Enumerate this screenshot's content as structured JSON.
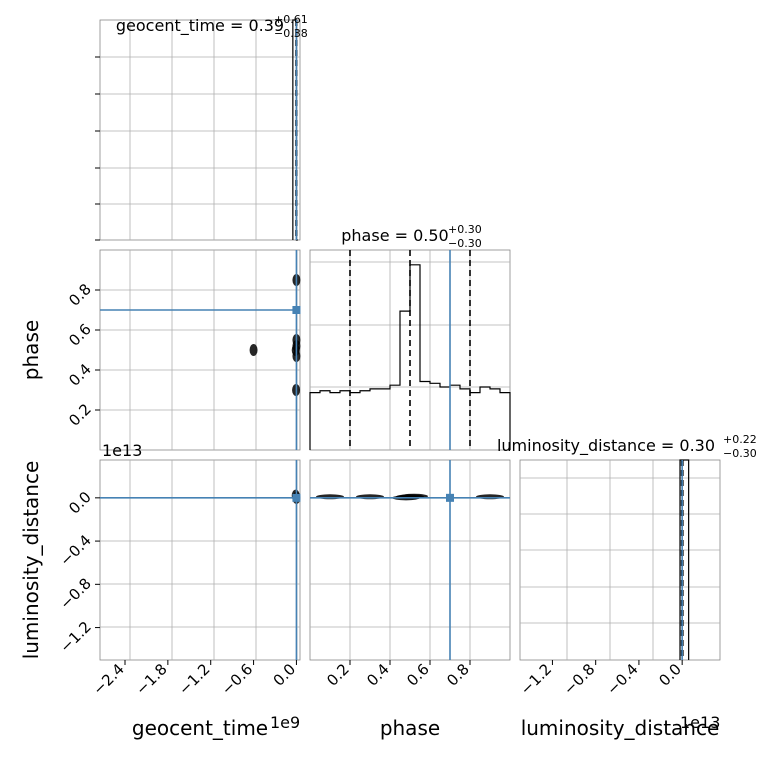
{
  "chart_data": {
    "type": "corner",
    "parameters": [
      {
        "key": "geocent_time",
        "axis_label": "geocent_time",
        "title_prefix": "geocent_time = ",
        "median": "0.39",
        "plus": "+0.61",
        "minus": "−0.38",
        "range": [
          -2.75,
          0.05
        ],
        "ticks": [
          -2.4,
          -1.8,
          -1.2,
          -0.6,
          0.0
        ],
        "tick_labels": [
          "−2.4",
          "−1.8",
          "−1.2",
          "−0.6",
          "0.0"
        ],
        "offset_text": "1e9",
        "truth": 0.0,
        "quantiles": [
          -0.006,
          0.0,
          0.003
        ]
      },
      {
        "key": "phase",
        "axis_label": "phase",
        "title_prefix": "phase = ",
        "median": "0.50",
        "plus": "+0.30",
        "minus": "−0.30",
        "range": [
          0.0,
          1.0
        ],
        "ticks": [
          0.2,
          0.4,
          0.6,
          0.8
        ],
        "tick_labels": [
          "0.2",
          "0.4",
          "0.6",
          "0.8"
        ],
        "offset_text": "",
        "truth": 0.7,
        "quantiles": [
          0.2,
          0.5,
          0.8
        ]
      },
      {
        "key": "luminosity_distance",
        "axis_label": "luminosity_distance",
        "title_prefix": "luminosity_distance = ",
        "median": "0.30",
        "plus": "+0.22",
        "minus": "−0.30",
        "range": [
          -1.5,
          0.35
        ],
        "ticks": [
          -1.2,
          -0.8,
          -0.4,
          0.0
        ],
        "tick_labels": [
          "−1.2",
          "−0.8",
          "−0.4",
          "0.0"
        ],
        "offset_text": "1e13",
        "truth": 0.0,
        "quantiles": [
          -0.005,
          0.0,
          0.006
        ]
      }
    ],
    "histograms_1d": {
      "geocent_time": {
        "bin_edges": [
          -0.05,
          0.0,
          0.02
        ],
        "counts": [
          1.0,
          0.0
        ],
        "ylim": [
          0,
          1.0
        ]
      },
      "phase": {
        "bin_edges": [
          0.0,
          0.05,
          0.1,
          0.15,
          0.2,
          0.25,
          0.3,
          0.35,
          0.4,
          0.45,
          0.5,
          0.55,
          0.6,
          0.65,
          0.7,
          0.75,
          0.8,
          0.85,
          0.9,
          0.95,
          1.0
        ],
        "counts": [
          0.31,
          0.32,
          0.31,
          0.32,
          0.31,
          0.32,
          0.33,
          0.33,
          0.35,
          0.75,
          1.0,
          0.37,
          0.36,
          0.34,
          0.35,
          0.33,
          0.31,
          0.34,
          0.33,
          0.31
        ],
        "ylim": [
          0,
          1.08
        ]
      },
      "luminosity_distance": {
        "bin_edges": [
          -0.02,
          0.0,
          0.06
        ],
        "counts": [
          1.0,
          1.0
        ],
        "ylim": [
          0,
          1.0
        ]
      }
    },
    "scatter_2d": {
      "phase_vs_geocent_time": {
        "x": "geocent_time",
        "y": "phase",
        "points": [
          [
            0.0,
            0.52
          ],
          [
            -0.01,
            0.5
          ],
          [
            0.0,
            0.47
          ],
          [
            0.0,
            0.55
          ],
          [
            -0.005,
            0.3
          ],
          [
            0.0,
            0.85
          ],
          [
            -0.6,
            0.5
          ]
        ]
      },
      "luminosity_distance_vs_geocent_time": {
        "x": "geocent_time",
        "y": "luminosity_distance",
        "points": [
          [
            0.0,
            0.0
          ],
          [
            -0.01,
            0.02
          ]
        ]
      },
      "luminosity_distance_vs_phase": {
        "x": "phase",
        "y": "luminosity_distance",
        "points": [
          [
            0.5,
            0.01
          ],
          [
            0.52,
            0.015
          ],
          [
            0.48,
            0.0
          ],
          [
            0.3,
            0.01
          ],
          [
            0.9,
            0.01
          ],
          [
            0.1,
            0.01
          ]
        ]
      }
    },
    "truth_color": "#4682b4",
    "grid": true
  }
}
